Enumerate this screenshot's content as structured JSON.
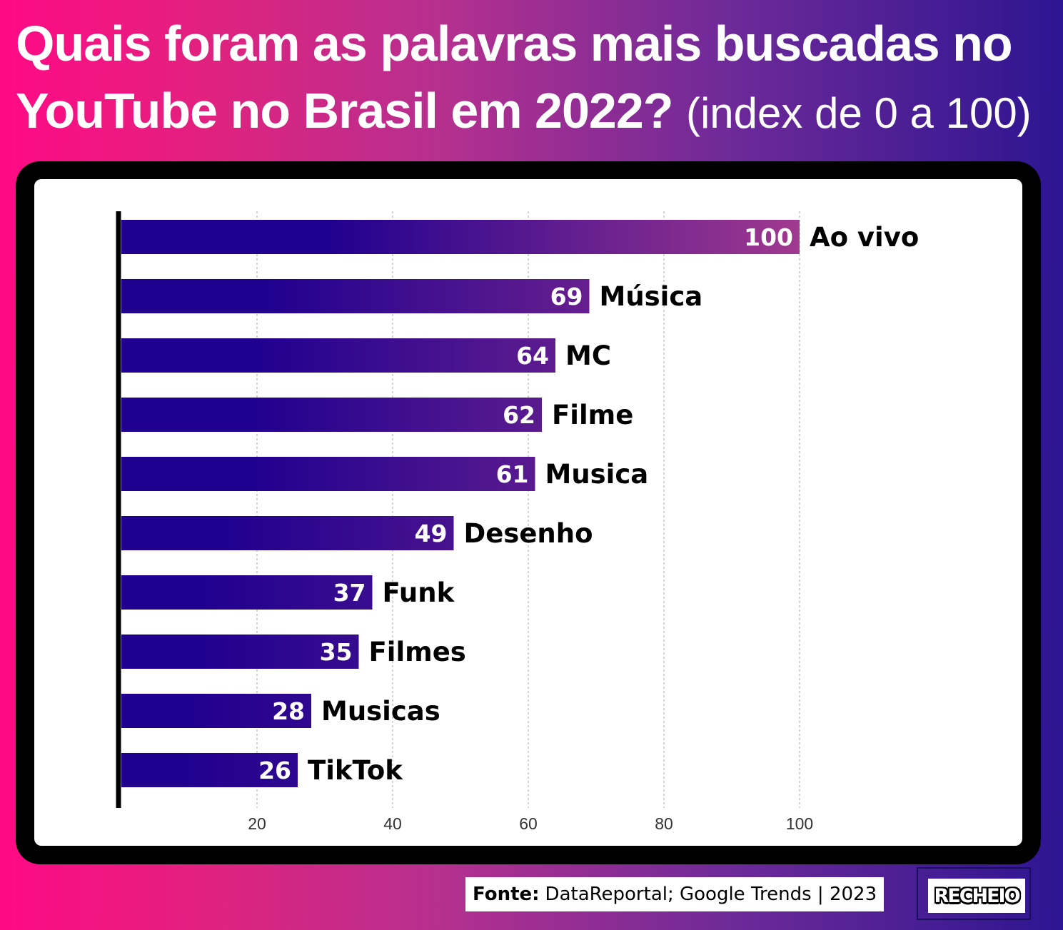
{
  "title": {
    "main": "Quais foram as palavras mais buscadas no YouTube no Brasil em 2022?",
    "sub": "(index de 0 a 100)"
  },
  "chart_data": {
    "type": "bar",
    "orientation": "horizontal",
    "categories": [
      "Ao vivo",
      "Música",
      "MC",
      "Filme",
      "Musica",
      "Desenho",
      "Funk",
      "Filmes",
      "Musicas",
      "TikTok"
    ],
    "values": [
      100,
      69,
      64,
      62,
      61,
      49,
      37,
      35,
      28,
      26
    ],
    "xticks": [
      20,
      40,
      60,
      80,
      100
    ],
    "xlim": [
      0,
      100
    ],
    "grid": "vertical dashed",
    "data_labels": true,
    "colors": {
      "bar_start": "#1f008f",
      "bar_end_full": "#a0398f",
      "text": "#000000"
    }
  },
  "footer": {
    "source_label": "Fonte:",
    "source_text": "DataReportal; Google Trends | 2023"
  },
  "logo": {
    "text": "RECHEIO"
  }
}
